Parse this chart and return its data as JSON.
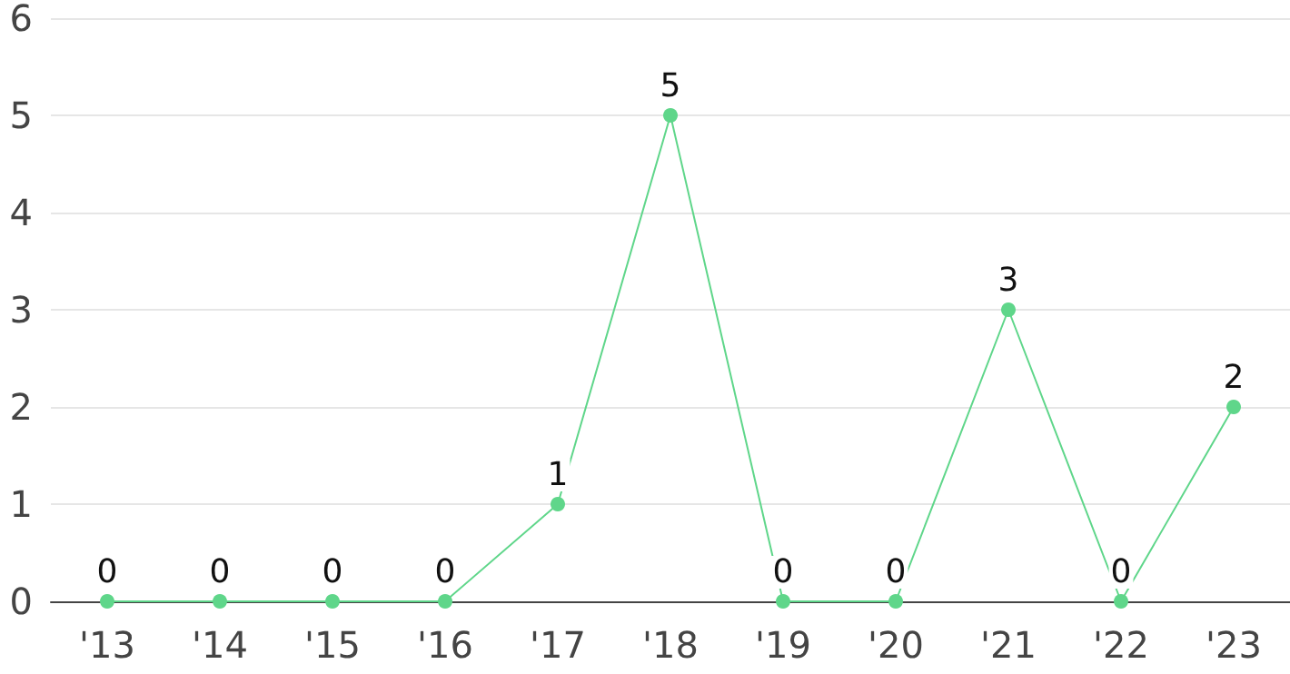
{
  "chart_data": {
    "type": "line",
    "categories": [
      "'13",
      "'14",
      "'15",
      "'16",
      "'17",
      "'18",
      "'19",
      "'20",
      "'21",
      "'22",
      "'23"
    ],
    "series": [
      {
        "color": "#5fd68a",
        "values": [
          0,
          0,
          0,
          0,
          1,
          5,
          0,
          0,
          3,
          0,
          2
        ]
      }
    ],
    "ylim": [
      0,
      6
    ],
    "yticks": [
      0,
      1,
      2,
      3,
      4,
      5,
      6
    ],
    "grid": "y",
    "data_labels": true,
    "marker": "circle",
    "line_style": "solid"
  }
}
